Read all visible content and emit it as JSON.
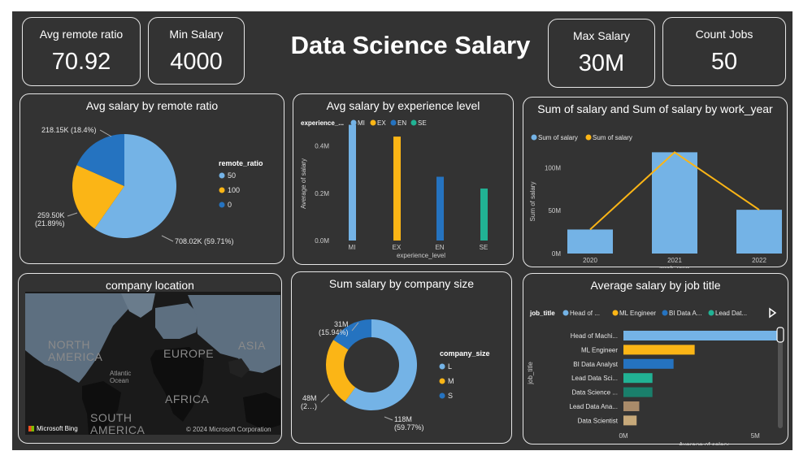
{
  "dashboard": {
    "title": "Data Science Salary"
  },
  "kpis": [
    {
      "label": "Avg remote ratio",
      "value": "70.92"
    },
    {
      "label": "Min Salary",
      "value": "4000"
    },
    {
      "label": "Max Salary",
      "value": "30M"
    },
    {
      "label": "Count Jobs",
      "value": "50"
    }
  ],
  "map": {
    "title": "company location",
    "labels": [
      "NORTH AMERICA",
      "EUROPE",
      "ASIA",
      "AFRICA",
      "SOUTH AMERICA",
      "Atlantic Ocean"
    ],
    "bing": "Microsoft Bing",
    "copyright": "© 2024 Microsoft Corporation",
    "colors": {
      "land": "#5d6f80",
      "water": "#141414",
      "selected": "#0e0e0e"
    }
  },
  "chart_data": [
    {
      "type": "pie",
      "title": "Avg salary by remote ratio",
      "legend_title": "remote_ratio",
      "legend_position": "right",
      "slices": [
        {
          "label": "50",
          "value": 708.02,
          "display": "708.02K (59.71%)",
          "percent": 59.71,
          "color": "#74b3e6"
        },
        {
          "label": "100",
          "value": 259.5,
          "display": "259.50K (21.89%)",
          "percent": 21.89,
          "color": "#fbb516"
        },
        {
          "label": "0",
          "value": 218.15,
          "display": "218.15K (18.4%)",
          "percent": 18.4,
          "color": "#2573c0"
        }
      ]
    },
    {
      "type": "bar",
      "title": "Avg salary by experience level",
      "legend_title": "experience_...",
      "legend_position": "top-left",
      "xlabel": "experience_level",
      "ylabel": "Average of salary",
      "categories": [
        "MI",
        "EX",
        "EN",
        "SE"
      ],
      "values": [
        0.49,
        0.44,
        0.27,
        0.22
      ],
      "colors": [
        "#74b3e6",
        "#fbb516",
        "#2573c0",
        "#21b294"
      ],
      "yticks": [
        "0.0M",
        "0.2M",
        "0.4M"
      ],
      "ylim": [
        0,
        0.5
      ]
    },
    {
      "type": "bar",
      "title": "Sum of salary and Sum of salary by work_year",
      "legend_position": "top-left",
      "xlabel": "work_year",
      "ylabel": "Sum of salary",
      "categories": [
        "2020",
        "2021",
        "2022"
      ],
      "series": [
        {
          "name": "Sum of salary",
          "type": "bar",
          "color": "#74b3e6",
          "values": [
            28,
            118,
            51
          ]
        },
        {
          "name": "Sum of salary",
          "type": "line",
          "color": "#fbb516",
          "values": [
            28,
            118,
            51
          ]
        }
      ],
      "yticks": [
        "0M",
        "50M",
        "100M"
      ],
      "ylim": [
        0,
        125
      ]
    },
    {
      "type": "pie",
      "title": "Sum salary by company size",
      "legend_title": "company_size",
      "legend_position": "right",
      "donut": true,
      "slices": [
        {
          "label": "L",
          "value": 118,
          "display": [
            "118M",
            "(59.77%)"
          ],
          "percent": 59.77,
          "color": "#74b3e6"
        },
        {
          "label": "M",
          "value": 48,
          "display": [
            "48M",
            "(2…)"
          ],
          "percent": 24.29,
          "color": "#fbb516"
        },
        {
          "label": "S",
          "value": 31,
          "display": [
            "31M",
            "(15.94%)"
          ],
          "percent": 15.94,
          "color": "#2573c0"
        }
      ]
    },
    {
      "type": "bar",
      "orientation": "horizontal",
      "title": "Average salary by job title",
      "legend_title": "job_title",
      "legend_position": "top-left",
      "legend_entries": [
        "Head of ...",
        "ML Engineer",
        "BI Data A...",
        "Lead Dat..."
      ],
      "xlabel": "Average of salary",
      "ylabel": "job_title",
      "categories": [
        "Head of Machi...",
        "ML Engineer",
        "BI Data Analyst",
        "Lead Data Sci...",
        "Data Science ...",
        "Lead Data Ana...",
        "Data Scientist"
      ],
      "values": [
        6.0,
        2.7,
        1.9,
        1.1,
        1.1,
        0.6,
        0.5
      ],
      "colors": [
        "#74b3e6",
        "#fbb516",
        "#2573c0",
        "#21b294",
        "#1a7f6b",
        "#a98b6a",
        "#c7a97a"
      ],
      "xticks": [
        "0M",
        "5M"
      ],
      "xlim": [
        0,
        6.1
      ]
    }
  ]
}
